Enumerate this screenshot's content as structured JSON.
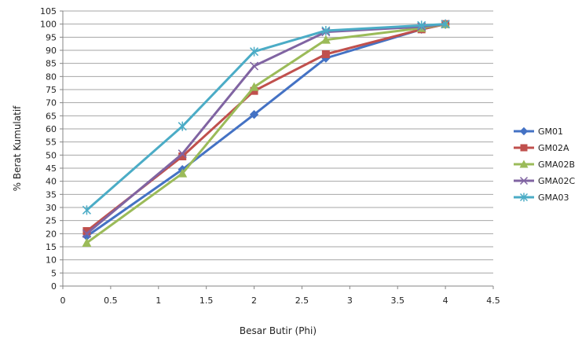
{
  "chart_data": {
    "type": "line",
    "title": "",
    "xlabel": "Besar Butir (Phi)",
    "ylabel": "% Berat Kumulatif",
    "xlim": [
      0,
      4.5
    ],
    "ylim": [
      0,
      105
    ],
    "x_ticks": [
      "0",
      "0.5",
      "1",
      "1.5",
      "2",
      "2.5",
      "3",
      "3.5",
      "4",
      "4.5"
    ],
    "y_ticks": [
      "0",
      "5",
      "10",
      "15",
      "20",
      "25",
      "30",
      "35",
      "40",
      "45",
      "50",
      "55",
      "60",
      "65",
      "70",
      "75",
      "80",
      "85",
      "90",
      "95",
      "100",
      "105"
    ],
    "grid": "horizontal",
    "legend_position": "right",
    "x": [
      0.25,
      1.25,
      2,
      2.75,
      3.75,
      4
    ],
    "series": [
      {
        "name": "GM01",
        "color": "#4472C4",
        "marker": "diamond",
        "values": [
          19,
          44.5,
          65.5,
          87,
          98,
          100
        ]
      },
      {
        "name": "GM02A",
        "color": "#C0504D",
        "marker": "square",
        "values": [
          21,
          49.5,
          74.5,
          88.5,
          98,
          100
        ]
      },
      {
        "name": "GMA02B",
        "color": "#9BBB59",
        "marker": "triangle",
        "values": [
          16.5,
          43,
          76,
          94,
          98.5,
          100
        ]
      },
      {
        "name": "GMA02C",
        "color": "#8064A2",
        "marker": "x",
        "values": [
          20,
          50.5,
          84,
          97,
          99,
          100
        ]
      },
      {
        "name": "GMA03",
        "color": "#4BACC6",
        "marker": "star",
        "values": [
          29,
          61,
          89.5,
          97.5,
          99.5,
          100
        ]
      }
    ]
  }
}
